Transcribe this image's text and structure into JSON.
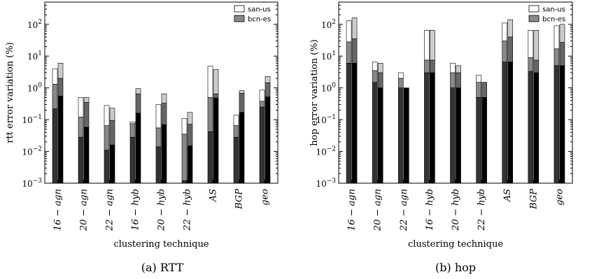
{
  "chart_data": [
    {
      "type": "bar",
      "subtype": "stacked-log-paired",
      "caption": "(a) RTT",
      "xlabel": "clustering technique",
      "ylabel": "rtt error variation (%)",
      "yscale": "log",
      "ylim": [
        0.001,
        500
      ],
      "yticks": [
        0.001,
        0.01,
        0.1,
        1,
        10,
        100
      ],
      "ytick_labels": [
        {
          "base": "10",
          "exp": "−3"
        },
        {
          "base": "10",
          "exp": "−2"
        },
        {
          "base": "10",
          "exp": "−1"
        },
        {
          "base": "10",
          "exp": "0"
        },
        {
          "base": "10",
          "exp": "1"
        },
        {
          "base": "10",
          "exp": "2"
        }
      ],
      "categories": [
        "16 − agn",
        "20 − agn",
        "22 − agn",
        "16 − hyb",
        "20 − hyb",
        "22 − hyb",
        "AS",
        "BGP",
        "geo"
      ],
      "legend": {
        "position": "top-right",
        "entries": [
          {
            "name": "san-us",
            "color": "#ffffff"
          },
          {
            "name": "bcn-es",
            "color": "#888888"
          }
        ]
      },
      "series": [
        {
          "name": "san-us",
          "segments": [
            [
              0.22,
              1.3,
              4.0
            ],
            [
              0.028,
              0.12,
              0.5
            ],
            [
              0.011,
              0.065,
              0.28
            ],
            [
              0.028,
              0.075,
              0.085
            ],
            [
              0.014,
              0.055,
              0.3
            ],
            [
              0.0012,
              0.035,
              0.11
            ],
            [
              0.042,
              0.5,
              4.8
            ],
            [
              0.028,
              0.065,
              0.14
            ],
            [
              0.25,
              0.38,
              0.85
            ]
          ]
        },
        {
          "name": "bcn-es",
          "segments": [
            [
              0.55,
              2.0,
              6.0
            ],
            [
              0.058,
              0.35,
              0.5
            ],
            [
              0.016,
              0.095,
              0.23
            ],
            [
              0.16,
              0.65,
              0.95
            ],
            [
              0.07,
              0.33,
              0.65
            ],
            [
              0.015,
              0.072,
              0.17
            ],
            [
              0.48,
              0.65,
              3.8
            ],
            [
              0.17,
              0.68,
              0.82
            ],
            [
              0.52,
              1.45,
              2.3
            ]
          ]
        }
      ]
    },
    {
      "type": "bar",
      "subtype": "stacked-log-paired",
      "caption": "(b) hop",
      "xlabel": "clustering technique",
      "ylabel": "hop error variation (%)",
      "yscale": "log",
      "ylim": [
        0.001,
        500
      ],
      "yticks": [
        0.001,
        0.01,
        0.1,
        1,
        10,
        100
      ],
      "ytick_labels": [
        {
          "base": "10",
          "exp": "−3"
        },
        {
          "base": "10",
          "exp": "−2"
        },
        {
          "base": "10",
          "exp": "−1"
        },
        {
          "base": "10",
          "exp": "0"
        },
        {
          "base": "10",
          "exp": "1"
        },
        {
          "base": "10",
          "exp": "2"
        }
      ],
      "categories": [
        "16 − agn",
        "20 − agn",
        "22 − agn",
        "16 − hyb",
        "20 − hyb",
        "22 − hyb",
        "AS",
        "BGP",
        "geo"
      ],
      "legend": {
        "position": "top-right",
        "entries": [
          {
            "name": "san-us",
            "color": "#ffffff"
          },
          {
            "name": "bcn-es",
            "color": "#888888"
          }
        ]
      },
      "series": [
        {
          "name": "san-us",
          "segments": [
            [
              6.0,
              28,
              130
            ],
            [
              1.5,
              3.5,
              6.5
            ],
            [
              1.0,
              2.0,
              3.0
            ],
            [
              3.0,
              7.5,
              65
            ],
            [
              1.0,
              3.0,
              6.0
            ],
            [
              0.5,
              1.5,
              2.5
            ],
            [
              6.5,
              30,
              110
            ],
            [
              3.3,
              9.0,
              65
            ],
            [
              5.0,
              17,
              90
            ]
          ]
        },
        {
          "name": "bcn-es",
          "segments": [
            [
              6.0,
              35,
              160
            ],
            [
              1.0,
              3.0,
              6.0
            ],
            [
              1.0,
              1.0,
              1.0
            ],
            [
              3.0,
              7.5,
              65
            ],
            [
              1.0,
              3.0,
              5.0
            ],
            [
              0.5,
              1.5,
              1.5
            ],
            [
              6.5,
              40,
              140
            ],
            [
              3.0,
              7.5,
              65
            ],
            [
              5.0,
              27,
              100
            ]
          ]
        }
      ]
    }
  ]
}
